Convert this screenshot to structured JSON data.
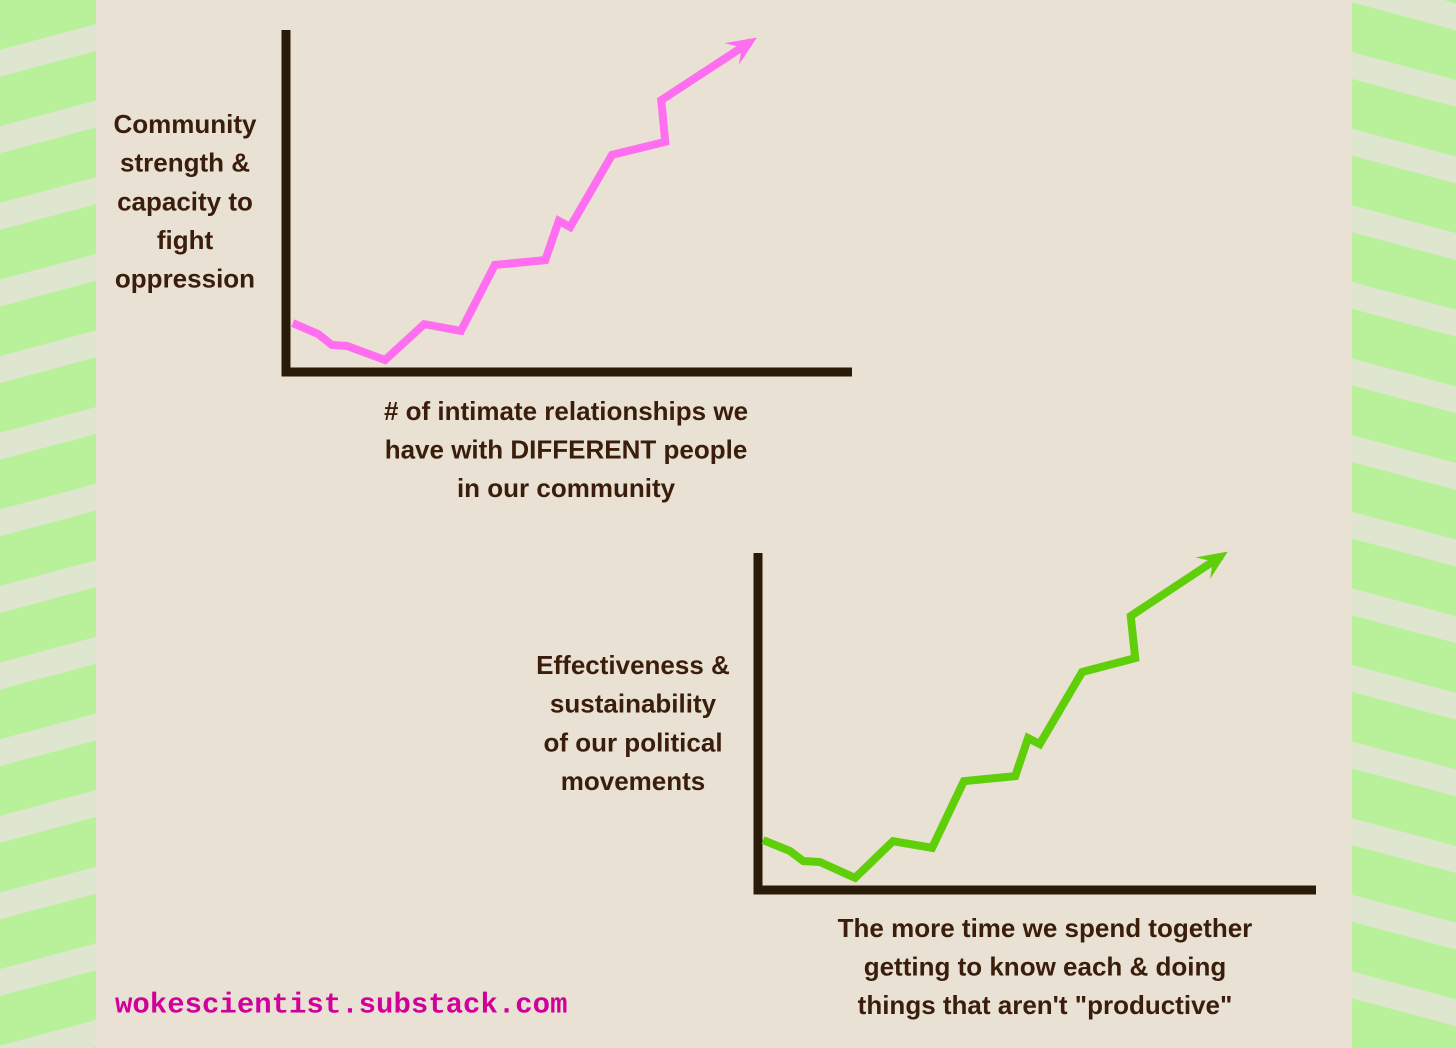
{
  "chart_data": [
    {
      "type": "line",
      "color": "#ff6ef0",
      "y_label": [
        "Community",
        "strength &",
        "capacity to",
        "fight",
        "oppression"
      ],
      "x_label": [
        "# of intimate relationships we",
        "have with DIFFERENT people",
        "in our community"
      ],
      "xlim": [
        0,
        100
      ],
      "ylim": [
        0,
        100
      ],
      "x": [
        1.2,
        5.7,
        8.1,
        10.8,
        17.5,
        24.4,
        30.9,
        36.9,
        45.8,
        48.2,
        50.2,
        57.6,
        67.0,
        66.3,
        82.0
      ],
      "values": [
        14.3,
        11.1,
        7.9,
        7.6,
        3.5,
        14.0,
        12.0,
        31.3,
        32.7,
        44.2,
        42.4,
        63.5,
        67.3,
        79.5,
        96.5
      ]
    },
    {
      "type": "line",
      "color": "#5fcf0a",
      "y_label": [
        "Effectiveness &",
        "sustainability",
        "of our political",
        "movements"
      ],
      "x_label": [
        "The more time we spend together",
        "getting to know each & doing",
        "things that aren't \"productive\""
      ],
      "xlim": [
        0,
        100
      ],
      "ylim": [
        0,
        100
      ],
      "x": [
        0.9,
        5.7,
        8.1,
        11.1,
        17.4,
        24.2,
        31.2,
        36.9,
        46.1,
        48.4,
        50.5,
        58.1,
        67.6,
        66.8,
        83.0
      ],
      "values": [
        14.8,
        11.6,
        8.6,
        8.3,
        3.6,
        14.5,
        12.5,
        32.3,
        33.8,
        45.1,
        43.3,
        64.7,
        68.8,
        81.3,
        99.1
      ]
    }
  ],
  "footer": "wokescientist.substack.com"
}
